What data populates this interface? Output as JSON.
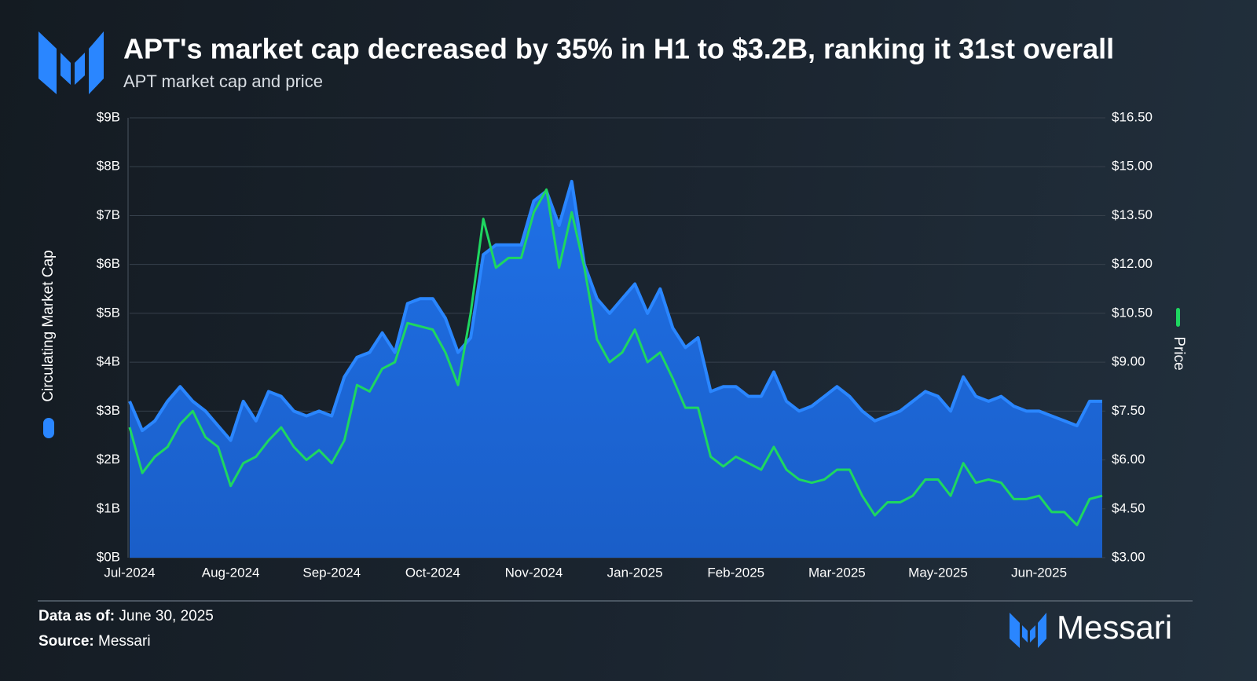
{
  "chart_data": {
    "type": "area",
    "title": "APT's market cap decreased by 35% in H1 to $3.2B, ranking it 31st overall",
    "subtitle": "APT market cap and price",
    "categories": [
      "Jul-2024",
      null,
      null,
      null,
      null,
      null,
      null,
      null,
      "Aug-2024",
      null,
      null,
      null,
      null,
      null,
      null,
      null,
      "Sep-2024",
      null,
      null,
      null,
      null,
      null,
      null,
      null,
      "Oct-2024",
      null,
      null,
      null,
      null,
      null,
      null,
      null,
      "Nov-2024",
      null,
      null,
      null,
      null,
      null,
      null,
      null,
      "Jan-2025",
      null,
      null,
      null,
      null,
      null,
      null,
      null,
      "Feb-2025",
      null,
      null,
      null,
      null,
      null,
      null,
      null,
      "Mar-2025",
      null,
      null,
      null,
      null,
      null,
      null,
      null,
      "May-2025",
      null,
      null,
      null,
      null,
      null,
      null,
      null,
      "Jun-2025",
      null,
      null,
      null,
      null,
      null
    ],
    "series": [
      {
        "name": "Circulating Market Cap",
        "type": "area",
        "color": "#2a86ff",
        "axis": "y",
        "values": [
          3.2,
          2.6,
          2.8,
          3.2,
          3.5,
          3.2,
          3.0,
          2.7,
          2.4,
          3.2,
          2.8,
          3.4,
          3.3,
          3.0,
          2.9,
          3.0,
          2.9,
          3.7,
          4.1,
          4.2,
          4.6,
          4.2,
          5.2,
          5.3,
          5.3,
          4.9,
          4.2,
          4.5,
          6.2,
          6.4,
          6.4,
          6.4,
          7.3,
          7.5,
          6.8,
          7.7,
          6.0,
          5.3,
          5.0,
          5.3,
          5.6,
          5.0,
          5.5,
          4.7,
          4.3,
          4.5,
          3.4,
          3.5,
          3.5,
          3.3,
          3.3,
          3.8,
          3.2,
          3.0,
          3.1,
          3.3,
          3.5,
          3.3,
          3.0,
          2.8,
          2.9,
          3.0,
          3.2,
          3.4,
          3.3,
          3.0,
          3.7,
          3.3,
          3.2,
          3.3,
          3.1,
          3.0,
          3.0,
          2.9,
          2.8,
          2.7,
          3.2,
          3.2
        ]
      },
      {
        "name": "Price",
        "type": "line",
        "color": "#1ed760",
        "axis": "y2",
        "values": [
          7.0,
          5.6,
          6.1,
          6.4,
          7.1,
          7.5,
          6.7,
          6.4,
          5.2,
          5.9,
          6.1,
          6.6,
          7.0,
          6.4,
          6.0,
          6.3,
          5.9,
          6.6,
          8.3,
          8.1,
          8.8,
          9.0,
          10.2,
          10.1,
          10.0,
          9.3,
          8.3,
          10.5,
          13.4,
          11.9,
          12.2,
          12.2,
          13.6,
          14.3,
          11.9,
          13.6,
          11.9,
          9.7,
          9.0,
          9.3,
          10.0,
          9.0,
          9.3,
          8.5,
          7.6,
          7.6,
          6.1,
          5.8,
          6.1,
          5.9,
          5.7,
          6.4,
          5.7,
          5.4,
          5.3,
          5.4,
          5.7,
          5.7,
          4.9,
          4.3,
          4.7,
          4.7,
          4.9,
          5.4,
          5.4,
          4.9,
          5.9,
          5.3,
          5.4,
          5.3,
          4.8,
          4.8,
          4.9,
          4.4,
          4.4,
          4.0,
          4.8,
          4.9
        ]
      }
    ],
    "ylim": [
      0,
      9
    ],
    "yticks": [
      {
        "value": 0,
        "label": "$0B"
      },
      {
        "value": 1,
        "label": "$1B"
      },
      {
        "value": 2,
        "label": "$2B"
      },
      {
        "value": 3,
        "label": "$3B"
      },
      {
        "value": 4,
        "label": "$4B"
      },
      {
        "value": 5,
        "label": "$5B"
      },
      {
        "value": 6,
        "label": "$6B"
      },
      {
        "value": 7,
        "label": "$7B"
      },
      {
        "value": 8,
        "label": "$8B"
      },
      {
        "value": 9,
        "label": "$9B"
      }
    ],
    "y2lim": [
      3,
      16.5
    ],
    "y2ticks": [
      {
        "value": 3,
        "label": "$3.00"
      },
      {
        "value": 4.5,
        "label": "$4.50"
      },
      {
        "value": 6,
        "label": "$6.00"
      },
      {
        "value": 7.5,
        "label": "$7.50"
      },
      {
        "value": 9,
        "label": "$9.00"
      },
      {
        "value": 10.5,
        "label": "$10.50"
      },
      {
        "value": 12,
        "label": "$12.00"
      },
      {
        "value": 13.5,
        "label": "$13.50"
      },
      {
        "value": 15,
        "label": "$15.00"
      },
      {
        "value": 16.5,
        "label": "$16.50"
      }
    ],
    "grid": true
  },
  "footer": {
    "data_as_of_label": "Data as of:",
    "data_as_of": "June 30, 2025",
    "source_label": "Source:",
    "source": "Messari"
  },
  "brand": "Messari"
}
